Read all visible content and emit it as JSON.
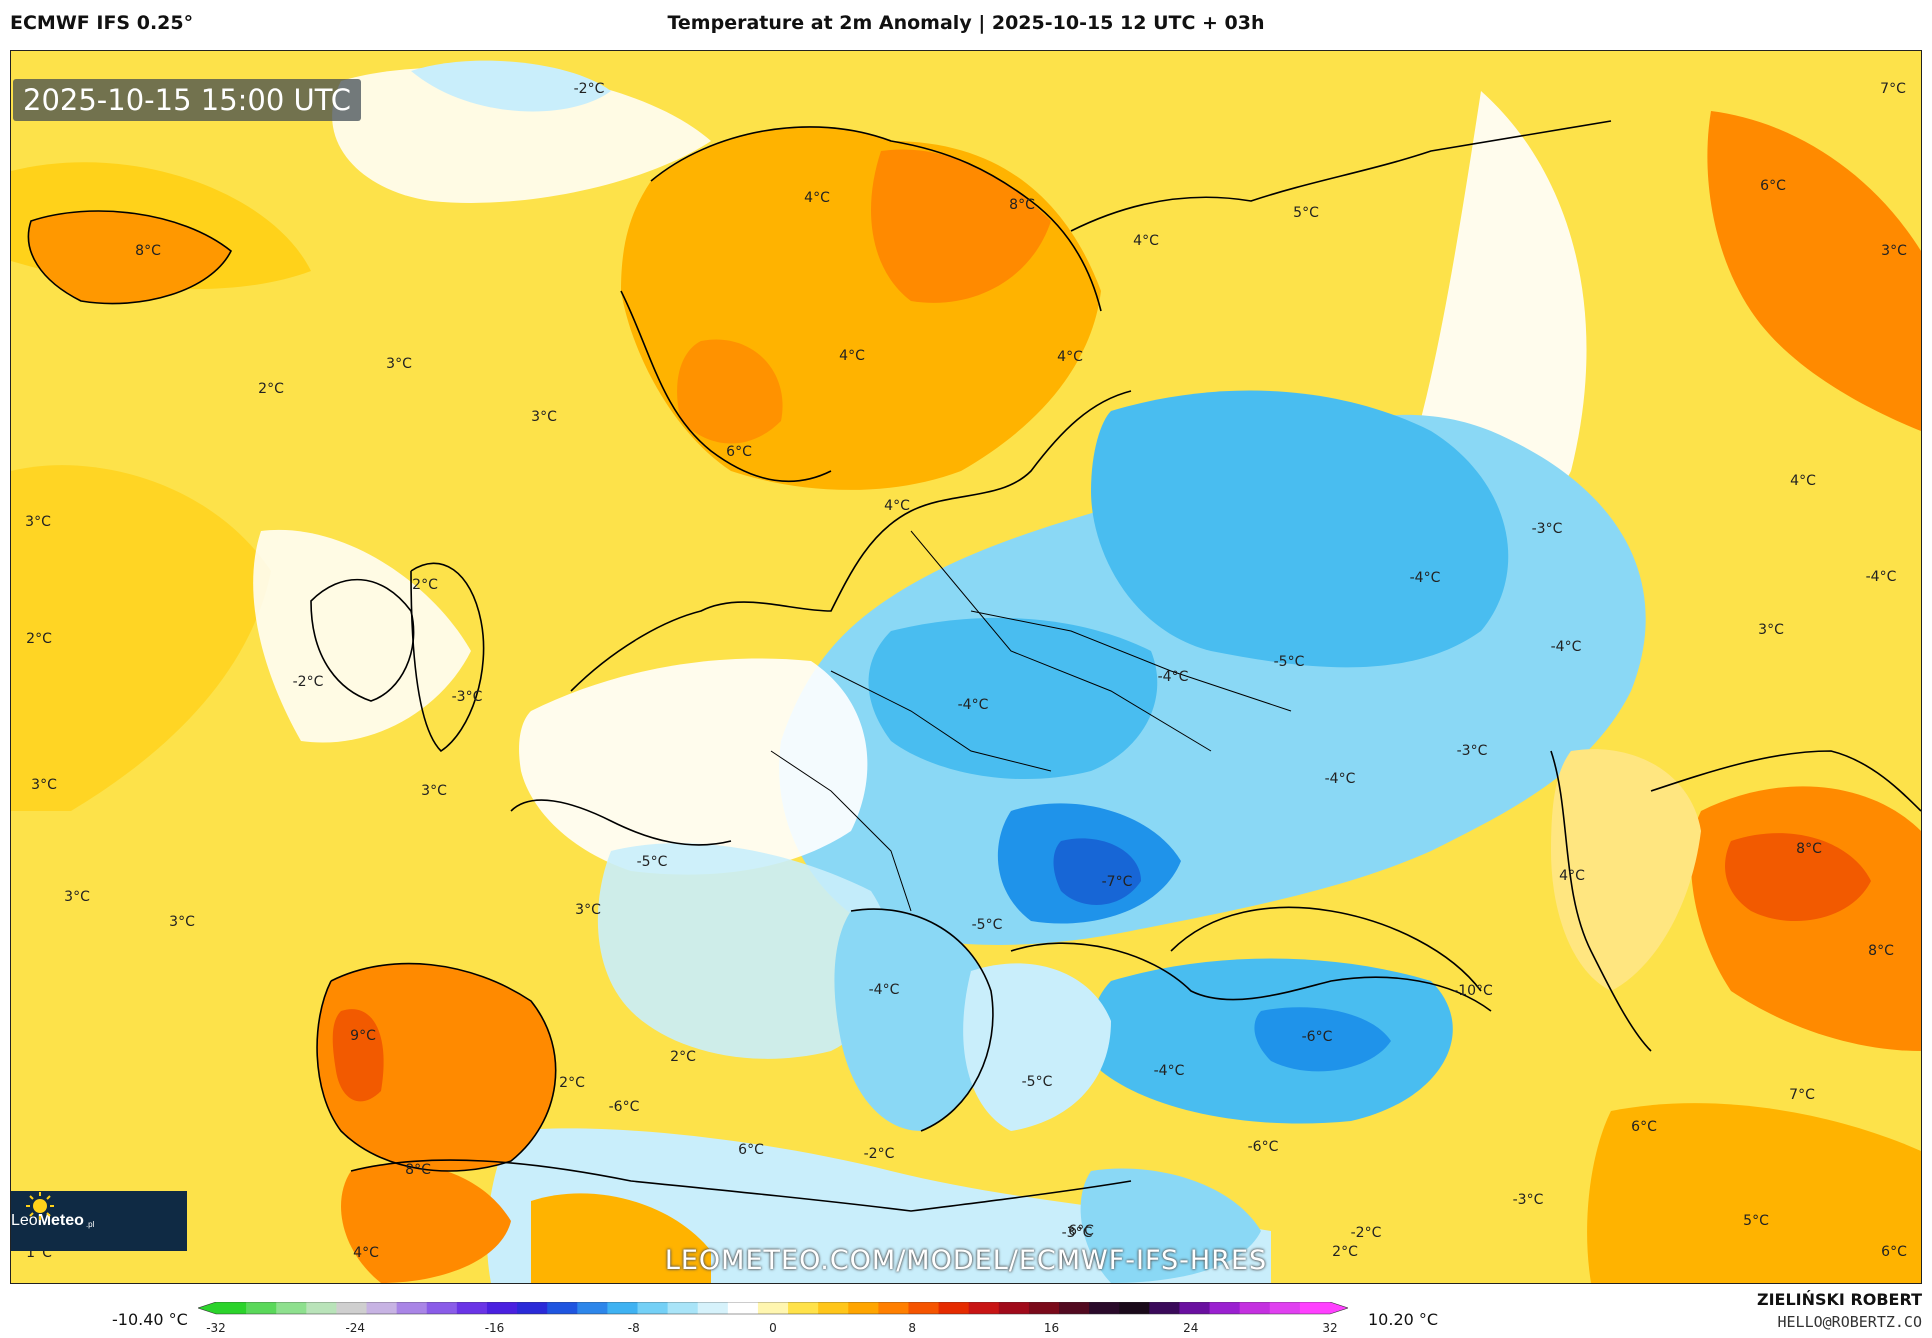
{
  "header": {
    "model": "ECMWF IFS 0.25°",
    "title": "Temperature at 2m Anomaly | 2025-10-15 12 UTC + 03h"
  },
  "map": {
    "timestamp": "2025-10-15 15:00 UTC",
    "brand": {
      "part1": "Leo",
      "part2": "Meteo",
      "part3": ".pl"
    },
    "watermark": "LEOMETEO.COM/MODEL/ECMWF-IFS-HRES",
    "labels": [
      "-2°C",
      "4°C",
      "8°C",
      "5°C",
      "7°C",
      "6°C",
      "8°C",
      "3°C",
      "4°C",
      "4°C",
      "3°C",
      "2°C",
      "3°C",
      "6°C",
      "4°C",
      "3°C",
      "2°C",
      "4°C",
      "2°C",
      "-3°C",
      "-4°C",
      "-4°C",
      "-2°C",
      "-4°C",
      "-5°C",
      "-4°C",
      "3°C",
      "-3°C",
      "-4°C",
      "4°C",
      "8°C",
      "-3°C",
      "-7°C",
      "-4°C",
      "3°C",
      "3°C",
      "3°C",
      "3°C",
      "4°C",
      "-5°C",
      "8°C",
      "-10°C",
      "3°C",
      "9°C",
      "-5°C",
      "-4°C",
      "2°C",
      "2°C",
      "-6°C",
      "-5°C",
      "-4°C",
      "-6°C",
      "7°C",
      "6°C",
      "6°C",
      "8°C",
      "-2°C",
      "-6°C",
      "-3°C",
      "6°C",
      "5°C",
      "-3°C",
      "-2°C",
      "2°C",
      "6°C",
      "1°C",
      "4°C"
    ]
  },
  "colorbar": {
    "min_label": "-10.40 °C",
    "max_label": "10.20 °C",
    "ticks": [
      "-32",
      "-24",
      "-16",
      "-8",
      "0",
      "8",
      "16",
      "24",
      "32"
    ],
    "colors": [
      "#2bd32b",
      "#5ad85a",
      "#8ee08e",
      "#b9e3b9",
      "#cfcfcf",
      "#c7b3e3",
      "#a985e6",
      "#8a5ce8",
      "#6a34e6",
      "#4a20e0",
      "#2a2ad8",
      "#1f55e0",
      "#2d86ea",
      "#3fb2f2",
      "#74d0f6",
      "#a9e4f8",
      "#d6f2fb",
      "#ffffff",
      "#fff6b0",
      "#ffe24a",
      "#ffc61a",
      "#ffa500",
      "#ff7f00",
      "#f55400",
      "#e52b00",
      "#c81414",
      "#a00a1a",
      "#7a0a1a",
      "#520a20",
      "#2a0a2a",
      "#1a0a1a",
      "#3a0a5a",
      "#6a10a0",
      "#9a20d0",
      "#c430e0",
      "#e040f0",
      "#ff40ff"
    ]
  },
  "credit": {
    "name": "ZIELIŃSKI ROBERT",
    "email": "HELLO@ROBERTZ.CO"
  },
  "palette": {
    "ocean_warm": "#fde24a",
    "warm_yellow": "#ffd21a",
    "warm_orange": "#ffb300",
    "hot_orange": "#ff8a00",
    "hot_red": "#f25a00",
    "neutral": "#ffffff",
    "cool_light": "#c9eefb",
    "cool": "#8ad8f5",
    "cold": "#49bdf0",
    "colder": "#1f93ea",
    "coldest": "#1766d6",
    "coast": "#000000"
  }
}
